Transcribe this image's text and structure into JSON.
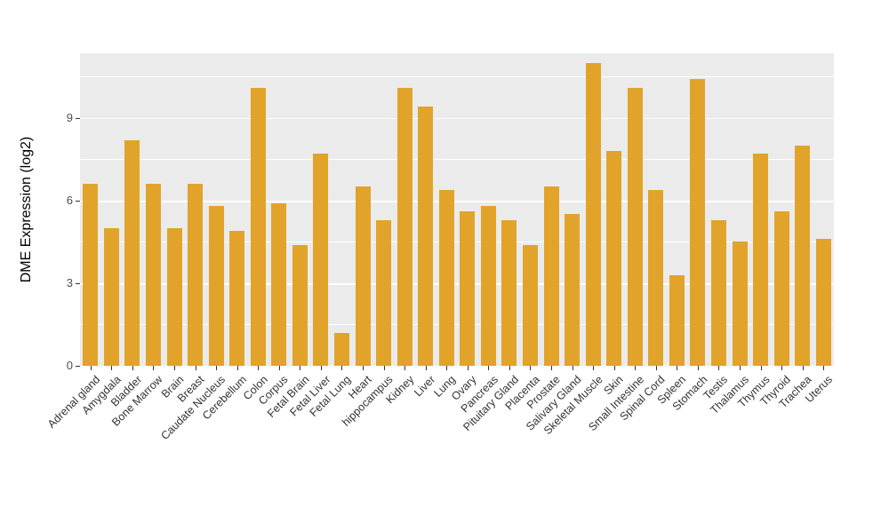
{
  "chart_data": {
    "type": "bar",
    "title": "",
    "xlabel": "",
    "ylabel": "DME Expression (log2)",
    "ylim": [
      0,
      11.35
    ],
    "yticks": [
      0,
      3,
      6,
      9
    ],
    "yticks_minor": [
      1.5,
      4.5,
      7.5,
      10.5
    ],
    "grid": "on",
    "legend": "none",
    "panel_background": "#EBEBEB",
    "bar_color": "#E2A32B",
    "categories": [
      "Adrenal gland",
      "Amygdala",
      "Bladder",
      "Bone Marrow",
      "Brain",
      "Breast",
      "Caudate Nucleus",
      "Cerebellum",
      "Colon",
      "Corpus",
      "Fetal Brain",
      "Fetal Liver",
      "Fetal Lung",
      "Heart",
      "hippocampus",
      "Kidney",
      "Liver",
      "Lung",
      "Ovary",
      "Pancreas",
      "Pituitary Gland",
      "Placenta",
      "Prostate",
      "Salivary Gland",
      "Skeletal Muscle",
      "Skin",
      "Small Intestine",
      "Spinal Cord",
      "Spleen",
      "Stomach",
      "Testis",
      "Thalamus",
      "Thymus",
      "Thyroid",
      "Trachea",
      "Uterus"
    ],
    "values": [
      6.6,
      5.0,
      8.2,
      6.6,
      5.0,
      6.6,
      5.8,
      4.9,
      10.1,
      5.9,
      4.4,
      7.7,
      1.2,
      6.5,
      5.3,
      10.1,
      9.4,
      6.4,
      5.6,
      5.8,
      5.3,
      4.4,
      6.5,
      5.5,
      11.0,
      7.8,
      10.1,
      6.4,
      3.3,
      10.4,
      5.3,
      4.5,
      7.7,
      5.6,
      8.0,
      4.6
    ]
  }
}
